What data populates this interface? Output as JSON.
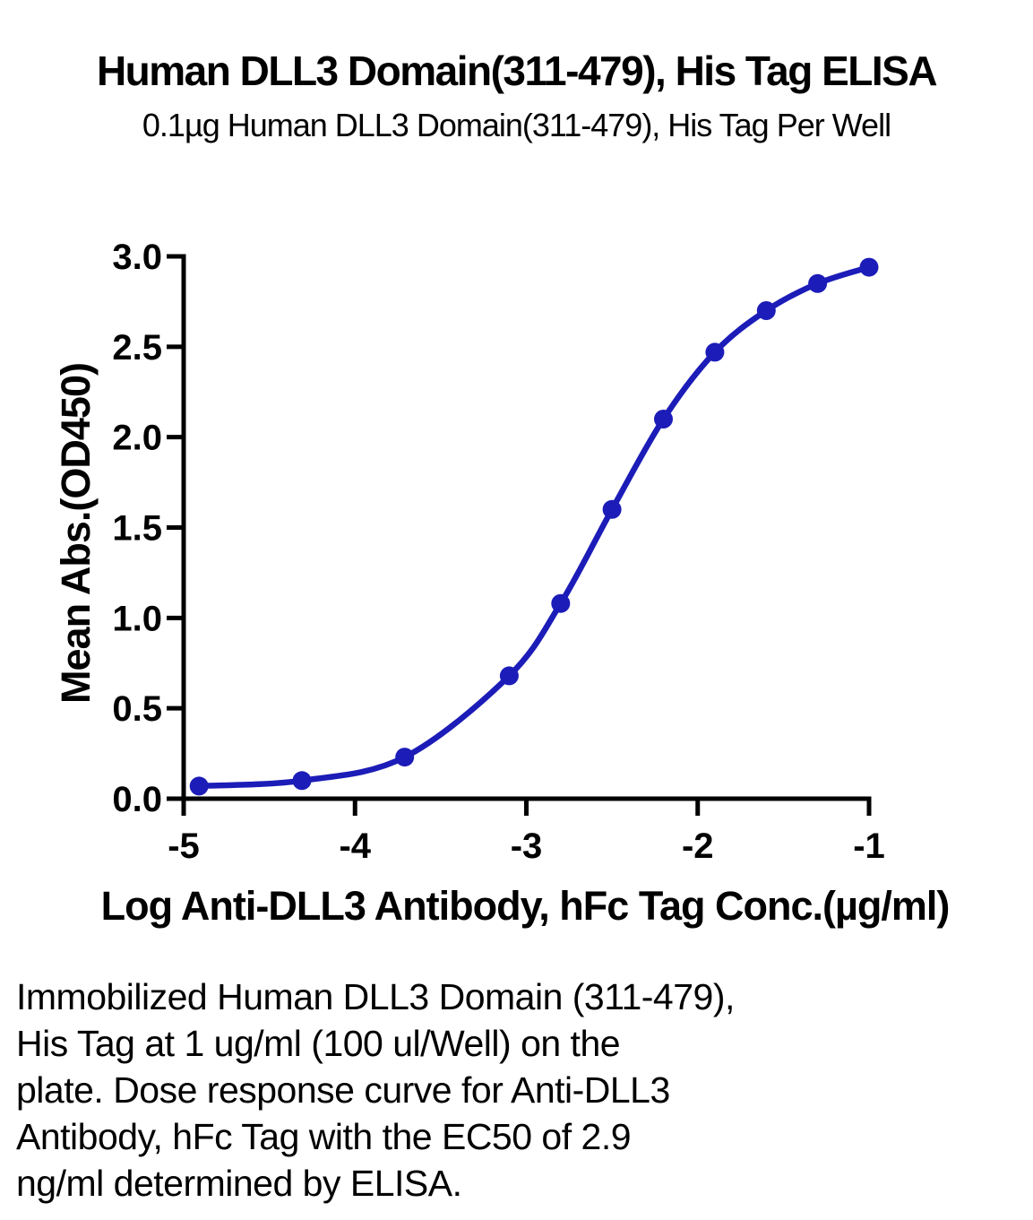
{
  "chart_data": {
    "type": "line",
    "title": "Human DLL3 Domain(311-479), His Tag ELISA",
    "subtitle": "0.1µg Human DLL3 Domain(311-479), His Tag Per Well",
    "xlabel": "Log Anti-DLL3 Antibody, hFc Tag Conc.(µg/ml)",
    "ylabel": "Mean Abs.(OD450)",
    "xlim": [
      -5,
      -1
    ],
    "ylim": [
      0,
      3
    ],
    "x_tick_labels": [
      "-5",
      "-4",
      "-3",
      "-2",
      "-1"
    ],
    "y_tick_labels": [
      "0.0",
      "0.5",
      "1.0",
      "1.5",
      "2.0",
      "2.5",
      "3.0"
    ],
    "grid": false,
    "legend": "none",
    "series": [
      {
        "name": "Anti-DLL3 Antibody, hFc Tag",
        "marker": "circle",
        "x": [
          -4.91,
          -4.31,
          -3.71,
          -3.1,
          -2.8,
          -2.5,
          -2.2,
          -1.9,
          -1.6,
          -1.3,
          -1.0
        ],
        "y": [
          0.07,
          0.1,
          0.23,
          0.68,
          1.08,
          1.6,
          2.1,
          2.47,
          2.7,
          2.85,
          2.94
        ]
      }
    ]
  },
  "caption_lines": [
    "Immobilized Human DLL3 Domain (311-479),",
    "His Tag at 1 ug/ml (100 ul/Well) on the",
    "plate. Dose response curve for Anti-DLL3",
    "Antibody, hFc Tag with the EC50 of 2.9",
    "ng/ml determined by ELISA."
  ],
  "colors": {
    "curve": "#1c1cb8",
    "axis": "#000000",
    "text": "#000000",
    "background": "#ffffff"
  }
}
